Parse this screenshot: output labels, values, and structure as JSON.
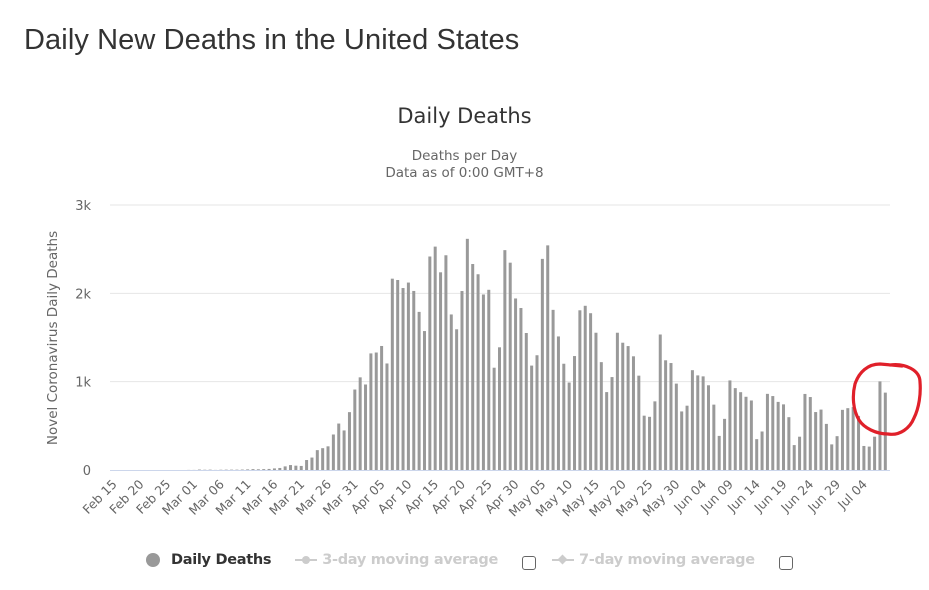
{
  "page": {
    "title": "Daily New Deaths in the United States"
  },
  "legend": {
    "items": [
      {
        "label": "Daily Deaths",
        "state": "visible",
        "icon": "circle-marker-icon"
      },
      {
        "label": "3-day moving average",
        "state": "hidden",
        "icon": "line-circle-marker-icon",
        "checkbox_checked": false
      },
      {
        "label": "7-day moving average",
        "state": "hidden",
        "icon": "line-diamond-marker-icon",
        "checkbox_checked": false
      }
    ]
  },
  "colors": {
    "bar": "#999999",
    "grid": "#e6e6e6",
    "axis_line": "#ccd6eb",
    "annotation": "#e0202a",
    "legend_hidden": "#cccccc"
  },
  "annotation": {
    "type": "red-hand-drawn-circle",
    "target": "last bars (Jul 06 - Jul 07)"
  },
  "chart_data": {
    "type": "bar",
    "title": "Daily Deaths",
    "subtitle": [
      "Deaths per Day",
      "Data as of 0:00 GMT+8"
    ],
    "xlabel": "",
    "ylabel": "Novel Coronavirus Daily Deaths",
    "ylim": [
      0,
      3000
    ],
    "yticks": [
      0,
      1000,
      2000,
      3000
    ],
    "ytick_labels": [
      "0",
      "1k",
      "2k",
      "3k"
    ],
    "grid": true,
    "legend_position": "bottom-center",
    "xtick_labels": [
      "Feb 15",
      "Feb 20",
      "Feb 25",
      "Mar 01",
      "Mar 06",
      "Mar 11",
      "Mar 16",
      "Mar 21",
      "Mar 26",
      "Mar 31",
      "Apr 05",
      "Apr 10",
      "Apr 15",
      "Apr 20",
      "Apr 25",
      "Apr 30",
      "May 05",
      "May 10",
      "May 15",
      "May 20",
      "May 25",
      "May 30",
      "Jun 04",
      "Jun 09",
      "Jun 14",
      "Jun 19",
      "Jun 24",
      "Jun 29",
      "Jul 04"
    ],
    "series": [
      {
        "name": "Daily Deaths",
        "start_date": "Feb 15",
        "categories": [
          "Feb 15",
          "Feb 16",
          "Feb 17",
          "Feb 18",
          "Feb 19",
          "Feb 20",
          "Feb 21",
          "Feb 22",
          "Feb 23",
          "Feb 24",
          "Feb 25",
          "Feb 26",
          "Feb 27",
          "Feb 28",
          "Feb 29",
          "Mar 01",
          "Mar 02",
          "Mar 03",
          "Mar 04",
          "Mar 05",
          "Mar 06",
          "Mar 07",
          "Mar 08",
          "Mar 09",
          "Mar 10",
          "Mar 11",
          "Mar 12",
          "Mar 13",
          "Mar 14",
          "Mar 15",
          "Mar 16",
          "Mar 17",
          "Mar 18",
          "Mar 19",
          "Mar 20",
          "Mar 21",
          "Mar 22",
          "Mar 23",
          "Mar 24",
          "Mar 25",
          "Mar 26",
          "Mar 27",
          "Mar 28",
          "Mar 29",
          "Mar 30",
          "Mar 31",
          "Apr 01",
          "Apr 02",
          "Apr 03",
          "Apr 04",
          "Apr 05",
          "Apr 06",
          "Apr 07",
          "Apr 08",
          "Apr 09",
          "Apr 10",
          "Apr 11",
          "Apr 12",
          "Apr 13",
          "Apr 14",
          "Apr 15",
          "Apr 16",
          "Apr 17",
          "Apr 18",
          "Apr 19",
          "Apr 20",
          "Apr 21",
          "Apr 22",
          "Apr 23",
          "Apr 24",
          "Apr 25",
          "Apr 26",
          "Apr 27",
          "Apr 28",
          "Apr 29",
          "Apr 30",
          "May 01",
          "May 02",
          "May 03",
          "May 04",
          "May 05",
          "May 06",
          "May 07",
          "May 08",
          "May 09",
          "May 10",
          "May 11",
          "May 12",
          "May 13",
          "May 14",
          "May 15",
          "May 16",
          "May 17",
          "May 18",
          "May 19",
          "May 20",
          "May 21",
          "May 22",
          "May 23",
          "May 24",
          "May 25",
          "May 26",
          "May 27",
          "May 28",
          "May 29",
          "May 30",
          "May 31",
          "Jun 01",
          "Jun 02",
          "Jun 03",
          "Jun 04",
          "Jun 05",
          "Jun 06",
          "Jun 07",
          "Jun 08",
          "Jun 09",
          "Jun 10",
          "Jun 11",
          "Jun 12",
          "Jun 13",
          "Jun 14",
          "Jun 15",
          "Jun 16",
          "Jun 17",
          "Jun 18",
          "Jun 19",
          "Jun 20",
          "Jun 21",
          "Jun 22",
          "Jun 23",
          "Jun 24",
          "Jun 25",
          "Jun 26",
          "Jun 27",
          "Jun 28",
          "Jun 29",
          "Jun 30",
          "Jul 01",
          "Jul 02",
          "Jul 03",
          "Jul 04",
          "Jul 05",
          "Jul 06",
          "Jul 07"
        ],
        "values": [
          0,
          0,
          0,
          0,
          0,
          0,
          0,
          0,
          0,
          0,
          0,
          0,
          0,
          0,
          1,
          1,
          5,
          3,
          4,
          1,
          3,
          4,
          4,
          4,
          5,
          7,
          10,
          8,
          10,
          12,
          18,
          23,
          41,
          56,
          49,
          46,
          113,
          141,
          225,
          247,
          268,
          402,
          526,
          448,
          655,
          911,
          1049,
          968,
          1320,
          1330,
          1404,
          1206,
          2166,
          2151,
          2060,
          2122,
          2027,
          1790,
          1573,
          2417,
          2529,
          2238,
          2431,
          1761,
          1593,
          2026,
          2617,
          2332,
          2216,
          1987,
          2040,
          1158,
          1389,
          2489,
          2347,
          1942,
          1834,
          1551,
          1182,
          1299,
          2390,
          2543,
          1813,
          1512,
          1203,
          990,
          1290,
          1808,
          1859,
          1775,
          1554,
          1221,
          882,
          1052,
          1554,
          1441,
          1403,
          1287,
          1068,
          615,
          602,
          777,
          1534,
          1242,
          1211,
          978,
          663,
          728,
          1130,
          1071,
          1060,
          959,
          740,
          386,
          579,
          1014,
          927,
          881,
          829,
          787,
          349,
          436,
          862,
          837,
          771,
          743,
          598,
          282,
          377,
          861,
          826,
          656,
          684,
          522,
          290,
          383,
          681,
          700,
          712,
          612,
          272,
          265,
          377,
          1003,
          876
        ]
      }
    ]
  }
}
